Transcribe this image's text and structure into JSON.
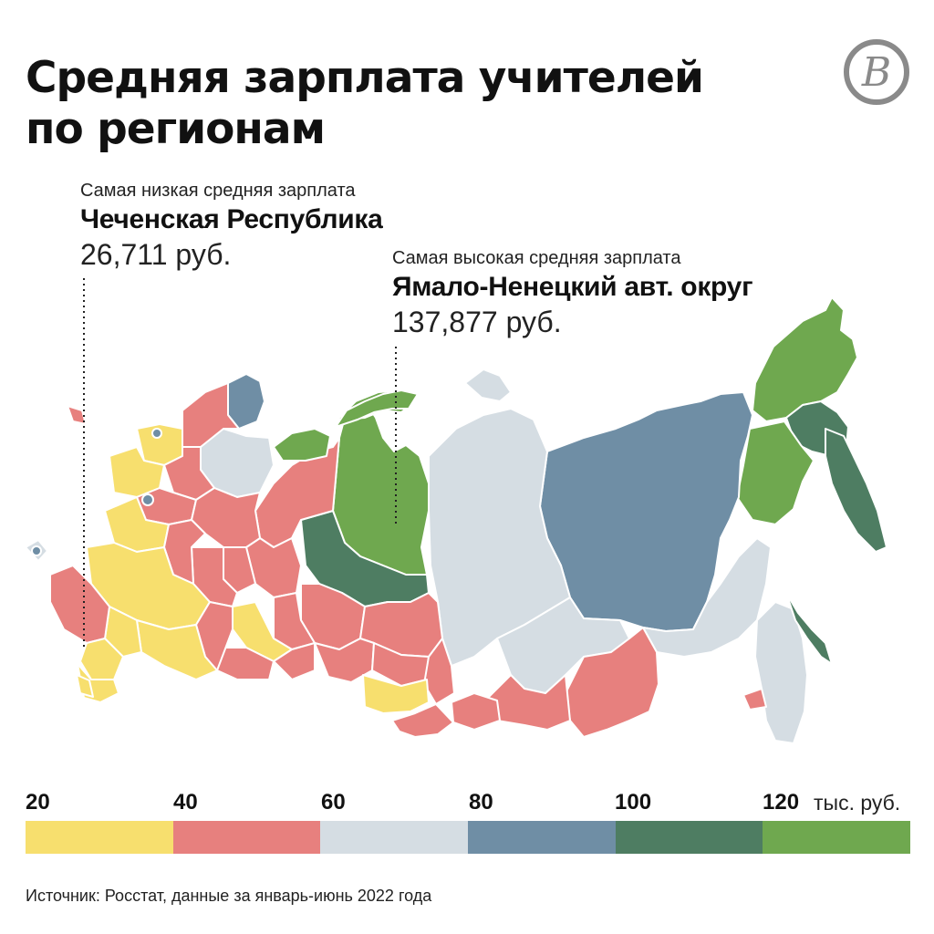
{
  "title_lines": [
    "Средняя зарплата учителей",
    "по регионам"
  ],
  "logo": {
    "icon": "publisher-logo-icon",
    "letter": "В"
  },
  "callouts": {
    "lowest": {
      "caption": "Самая низкая средняя зарплата",
      "region": "Чеченская Республика",
      "value": "26,711 руб."
    },
    "highest": {
      "caption": "Самая высокая средняя зарплата",
      "region": "Ямало-Ненецкий авт. округ",
      "value": "137,877 руб."
    }
  },
  "legend": {
    "ticks": [
      "20",
      "40",
      "60",
      "80",
      "100",
      "120"
    ],
    "unit": "тыс. руб.",
    "bins": [
      {
        "range": [
          20,
          40
        ],
        "color": "#f7df6e"
      },
      {
        "range": [
          40,
          60
        ],
        "color": "#e7807e"
      },
      {
        "range": [
          60,
          80
        ],
        "color": "#d5dde3"
      },
      {
        "range": [
          80,
          100
        ],
        "color": "#6f8ea5"
      },
      {
        "range": [
          100,
          120
        ],
        "color": "#4e7d62"
      },
      {
        "range": [
          120,
          140
        ],
        "color": "#6fa84f"
      }
    ]
  },
  "source": "Источник: Росстат, данные за январь-июнь 2022 года"
}
